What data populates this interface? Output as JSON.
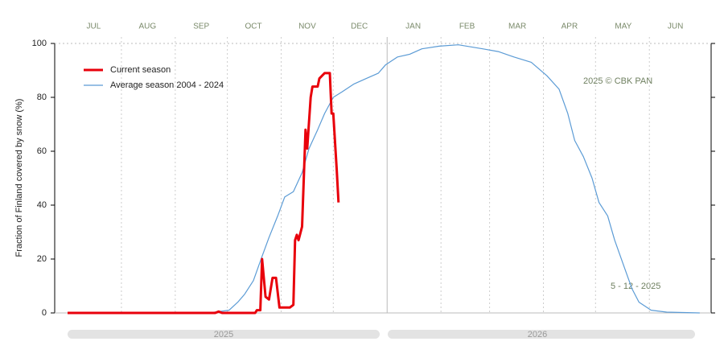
{
  "chart_data": {
    "type": "line",
    "ylabel": "Fraction of  Finland  covered by snow (%)",
    "xlim": [
      0,
      365
    ],
    "xticks": [
      {
        "value": 15,
        "label": "JUL"
      },
      {
        "value": 46,
        "label": "AUG"
      },
      {
        "value": 77,
        "label": "SEP"
      },
      {
        "value": 107,
        "label": "OCT"
      },
      {
        "value": 138,
        "label": "NOV"
      },
      {
        "value": 168,
        "label": "DEC"
      },
      {
        "value": 199,
        "label": "JAN"
      },
      {
        "value": 230,
        "label": "FEB"
      },
      {
        "value": 259,
        "label": "MAR"
      },
      {
        "value": 289,
        "label": "APR"
      },
      {
        "value": 320,
        "label": "MAY"
      },
      {
        "value": 350,
        "label": "JUN"
      }
    ],
    "xgrid": [
      31,
      62,
      92,
      123,
      153,
      184,
      215,
      243,
      274,
      304,
      335
    ],
    "ylim": [
      0,
      100
    ],
    "yticks": [
      0,
      20,
      40,
      60,
      80,
      100
    ],
    "year_labels": [
      "2025",
      "2026"
    ],
    "annotations": [
      "2025  © CBK PAN",
      "5 - 12 - 2025"
    ],
    "legend": "upper left",
    "series": [
      {
        "name": "Current season",
        "color": "#e8000b",
        "x": [
          0,
          85,
          87,
          89,
          108,
          109,
          111,
          112,
          114,
          116,
          118,
          120,
          122,
          128,
          130,
          131,
          132,
          133,
          135,
          137,
          138,
          140,
          141,
          144,
          145,
          148,
          151,
          152,
          153,
          155,
          156
        ],
        "values": [
          0,
          0,
          0.5,
          0,
          0,
          1,
          1,
          20,
          6,
          5,
          13,
          13,
          2,
          2,
          3,
          27,
          29,
          27,
          32,
          68,
          61,
          80,
          84,
          84,
          87,
          89,
          89,
          74,
          74,
          53,
          41
        ]
      },
      {
        "name": "Average season 2004 - 2024",
        "color": "#5b9bd5",
        "x": [
          0,
          81,
          93,
          98,
          102,
          107,
          112,
          116,
          121,
          125,
          130,
          135,
          139,
          144,
          148,
          153,
          158,
          165,
          172,
          179,
          183,
          190,
          197,
          204,
          214,
          225,
          239,
          248,
          257,
          267,
          276,
          283,
          288,
          292,
          297,
          302,
          306,
          311,
          315,
          320,
          325,
          329,
          336,
          345,
          364
        ],
        "values": [
          0,
          0,
          1,
          4,
          7,
          12,
          21,
          28,
          36,
          43,
          45,
          52,
          61,
          68,
          74,
          80,
          82,
          85,
          87,
          89,
          92,
          95,
          96,
          98,
          99,
          99.5,
          98,
          97,
          95,
          93,
          88,
          83,
          74,
          64,
          58,
          50,
          41,
          36,
          27,
          18,
          9,
          4,
          1,
          0.3,
          0
        ]
      }
    ]
  }
}
